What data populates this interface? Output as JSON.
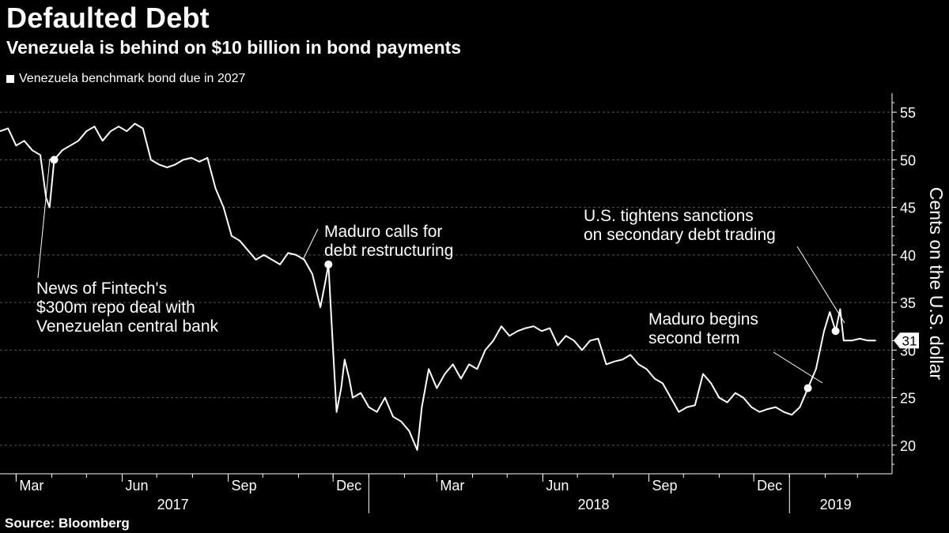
{
  "header": {
    "title": "Defaulted Debt",
    "subtitle": "Venezuela is behind on $10 billion in bond payments",
    "legend": "Venezuela benchmark bond due in 2027"
  },
  "footer": {
    "source": "Source: Bloomberg"
  },
  "colors": {
    "background": "#000000",
    "line": "#ffffff",
    "grid": "#555555"
  },
  "chart_data": {
    "type": "line",
    "title": "Defaulted Debt",
    "subtitle": "Venezuela is behind on $10 billion in bond payments",
    "ylabel": "Cents on the U.S. dollar",
    "xlabel": "",
    "ylim": [
      17,
      57
    ],
    "y_ticks": [
      20,
      25,
      30,
      35,
      40,
      45,
      50,
      55
    ],
    "x_tick_labels": [
      "Mar",
      "Jun",
      "Sep",
      "Dec",
      "Mar",
      "Jun",
      "Sep",
      "Dec"
    ],
    "x_tick_dates": [
      "2017-03-01",
      "2017-06-01",
      "2017-09-01",
      "2017-12-01",
      "2018-03-01",
      "2018-06-01",
      "2018-09-01",
      "2018-12-01"
    ],
    "year_labels": [
      {
        "label": "2017",
        "date": "2017-07-15"
      },
      {
        "label": "2018",
        "date": "2018-07-15"
      },
      {
        "label": "2019",
        "date": "2019-02-10"
      }
    ],
    "year_dividers": [
      "2018-01-01",
      "2019-01-01"
    ],
    "x_range": [
      "2017-02-15",
      "2019-03-31"
    ],
    "last_value": "31",
    "series": [
      {
        "name": "Venezuela benchmark bond due in 2027",
        "points": [
          [
            "2017-02-15",
            53
          ],
          [
            "2017-02-22",
            53.3
          ],
          [
            "2017-03-01",
            51.5
          ],
          [
            "2017-03-08",
            52
          ],
          [
            "2017-03-15",
            51
          ],
          [
            "2017-03-22",
            50.5
          ],
          [
            "2017-03-27",
            46
          ],
          [
            "2017-03-30",
            45
          ],
          [
            "2017-04-03",
            50
          ],
          [
            "2017-04-10",
            51
          ],
          [
            "2017-04-17",
            51.5
          ],
          [
            "2017-04-24",
            52
          ],
          [
            "2017-05-01",
            53
          ],
          [
            "2017-05-08",
            53.5
          ],
          [
            "2017-05-15",
            52
          ],
          [
            "2017-05-22",
            53
          ],
          [
            "2017-05-29",
            53.5
          ],
          [
            "2017-06-05",
            53
          ],
          [
            "2017-06-12",
            53.8
          ],
          [
            "2017-06-19",
            53.3
          ],
          [
            "2017-06-26",
            50
          ],
          [
            "2017-07-03",
            49.5
          ],
          [
            "2017-07-10",
            49.2
          ],
          [
            "2017-07-17",
            49.5
          ],
          [
            "2017-07-24",
            50
          ],
          [
            "2017-07-31",
            50.2
          ],
          [
            "2017-08-07",
            49.8
          ],
          [
            "2017-08-14",
            50.2
          ],
          [
            "2017-08-21",
            47
          ],
          [
            "2017-08-28",
            45
          ],
          [
            "2017-09-04",
            42
          ],
          [
            "2017-09-11",
            41.5
          ],
          [
            "2017-09-18",
            40.5
          ],
          [
            "2017-09-25",
            39.5
          ],
          [
            "2017-10-02",
            40
          ],
          [
            "2017-10-09",
            39.5
          ],
          [
            "2017-10-16",
            39
          ],
          [
            "2017-10-23",
            40.2
          ],
          [
            "2017-10-30",
            40
          ],
          [
            "2017-11-06",
            39.5
          ],
          [
            "2017-11-13",
            38
          ],
          [
            "2017-11-20",
            34.5
          ],
          [
            "2017-11-24",
            37
          ],
          [
            "2017-11-27",
            39
          ],
          [
            "2017-12-01",
            30
          ],
          [
            "2017-12-04",
            23.5
          ],
          [
            "2017-12-08",
            26
          ],
          [
            "2017-12-11",
            29
          ],
          [
            "2017-12-15",
            27
          ],
          [
            "2017-12-18",
            25
          ],
          [
            "2017-12-25",
            25.5
          ],
          [
            "2018-01-01",
            24
          ],
          [
            "2018-01-08",
            23.5
          ],
          [
            "2018-01-15",
            25
          ],
          [
            "2018-01-22",
            23
          ],
          [
            "2018-01-29",
            22.5
          ],
          [
            "2018-02-05",
            21.5
          ],
          [
            "2018-02-12",
            19.5
          ],
          [
            "2018-02-16",
            24
          ],
          [
            "2018-02-22",
            28
          ],
          [
            "2018-03-01",
            26
          ],
          [
            "2018-03-08",
            27.5
          ],
          [
            "2018-03-15",
            28.5
          ],
          [
            "2018-03-22",
            27
          ],
          [
            "2018-03-29",
            28.5
          ],
          [
            "2018-04-05",
            28
          ],
          [
            "2018-04-12",
            30
          ],
          [
            "2018-04-19",
            31
          ],
          [
            "2018-04-26",
            32.5
          ],
          [
            "2018-05-03",
            31.5
          ],
          [
            "2018-05-10",
            32
          ],
          [
            "2018-05-17",
            32.3
          ],
          [
            "2018-05-24",
            32.5
          ],
          [
            "2018-05-31",
            32
          ],
          [
            "2018-06-07",
            32.3
          ],
          [
            "2018-06-14",
            30.5
          ],
          [
            "2018-06-21",
            31.5
          ],
          [
            "2018-06-28",
            31
          ],
          [
            "2018-07-05",
            30
          ],
          [
            "2018-07-12",
            31
          ],
          [
            "2018-07-19",
            31.2
          ],
          [
            "2018-07-26",
            28.5
          ],
          [
            "2018-08-02",
            28.8
          ],
          [
            "2018-08-09",
            29
          ],
          [
            "2018-08-16",
            29.5
          ],
          [
            "2018-08-23",
            28.5
          ],
          [
            "2018-08-30",
            28
          ],
          [
            "2018-09-06",
            27
          ],
          [
            "2018-09-13",
            26.5
          ],
          [
            "2018-09-20",
            25
          ],
          [
            "2018-09-27",
            23.5
          ],
          [
            "2018-10-04",
            24
          ],
          [
            "2018-10-11",
            24.2
          ],
          [
            "2018-10-18",
            27.5
          ],
          [
            "2018-10-25",
            26.5
          ],
          [
            "2018-11-01",
            25
          ],
          [
            "2018-11-08",
            24.5
          ],
          [
            "2018-11-15",
            25.5
          ],
          [
            "2018-11-22",
            25
          ],
          [
            "2018-11-29",
            24
          ],
          [
            "2018-12-06",
            23.5
          ],
          [
            "2018-12-13",
            23.8
          ],
          [
            "2018-12-20",
            24
          ],
          [
            "2018-12-27",
            23.5
          ],
          [
            "2019-01-03",
            23.2
          ],
          [
            "2019-01-10",
            24
          ],
          [
            "2019-01-17",
            26
          ],
          [
            "2019-01-24",
            28
          ],
          [
            "2019-01-31",
            32
          ],
          [
            "2019-02-05",
            34
          ],
          [
            "2019-02-10",
            32
          ],
          [
            "2019-02-14",
            34.3
          ],
          [
            "2019-02-17",
            31
          ],
          [
            "2019-02-24",
            31
          ],
          [
            "2019-03-03",
            31.2
          ],
          [
            "2019-03-10",
            31
          ],
          [
            "2019-03-17",
            31
          ]
        ]
      }
    ],
    "annotations": [
      {
        "date": "2017-04-03",
        "value": 50,
        "text": [
          "News of Fintech's",
          "$300m repo deal with",
          "Venezuelan central bank"
        ]
      },
      {
        "date": "2017-11-27",
        "value": 39,
        "text": [
          "Maduro calls for",
          "debt restructuring"
        ]
      },
      {
        "date": "2019-02-10",
        "value": 32,
        "text": [
          "U.S. tightens sanctions",
          "on secondary debt trading"
        ]
      },
      {
        "date": "2019-01-17",
        "value": 26,
        "text": [
          "Maduro begins",
          "second term"
        ]
      }
    ]
  }
}
